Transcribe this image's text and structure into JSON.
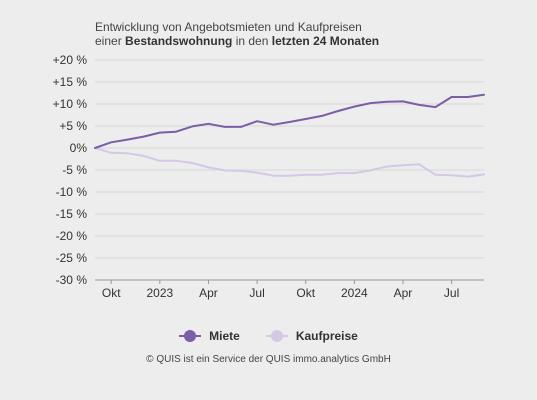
{
  "title": {
    "line1": "Entwicklung von Angebotsmieten und Kaufpreisen",
    "line2_pre": "einer ",
    "line2_bold1": "Bestandswohnung",
    "line2_mid": " in den ",
    "line2_bold2": "letzten 24 Monaten"
  },
  "footer": {
    "copyright": "© QUIS ist ein Service der QUIS immo.analytics GmbH"
  },
  "chart_data": {
    "type": "line",
    "x_tick_labels": [
      "Okt",
      "2023",
      "Apr",
      "Jul",
      "Okt",
      "2024",
      "Apr",
      "Jul"
    ],
    "y_tick_labels": [
      "+20 %",
      "+15 %",
      "+10 %",
      "+5 %",
      "0%",
      "-5 %",
      "-10 %",
      "-15 %",
      "-20 %",
      "-25 %",
      "-30 %"
    ],
    "y_ticks": [
      20,
      15,
      10,
      5,
      0,
      -5,
      -10,
      -15,
      -20,
      -25,
      -30
    ],
    "ylim": [
      -30,
      20
    ],
    "grid": true,
    "legend_position": "bottom",
    "colors": {
      "miete": "#7b5ea7",
      "kaufpreise": "#d4c8e6",
      "grid": "#d8d8d8",
      "axis": "#999999"
    },
    "series": [
      {
        "name": "Miete",
        "key": "miete",
        "values": [
          0,
          1.3,
          1.9,
          2.6,
          3.5,
          3.7,
          4.9,
          5.5,
          4.8,
          4.8,
          6.1,
          5.3,
          5.9,
          6.6,
          7.3,
          8.4,
          9.4,
          10.2,
          10.5,
          10.6,
          9.8,
          9.3,
          11.6,
          11.6,
          12.1
        ]
      },
      {
        "name": "Kaufpreise",
        "key": "kaufpreise",
        "values": [
          0,
          -1.1,
          -1.2,
          -1.8,
          -2.9,
          -2.9,
          -3.4,
          -4.4,
          -5.1,
          -5.2,
          -5.6,
          -6.3,
          -6.3,
          -6.1,
          -6.1,
          -5.7,
          -5.7,
          -5.1,
          -4.2,
          -3.9,
          -3.7,
          -6.1,
          -6.2,
          -6.5,
          -6.0
        ]
      }
    ]
  }
}
